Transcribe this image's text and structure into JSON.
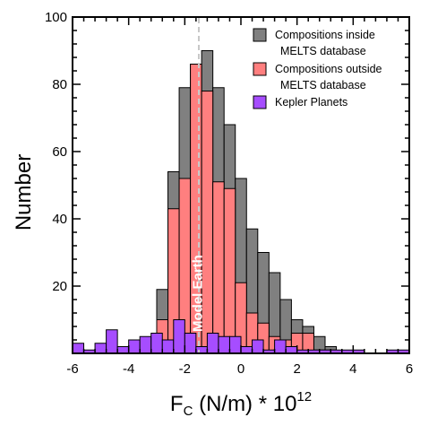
{
  "chart_data": {
    "type": "bar",
    "ylabel": "Number",
    "xlabel": {
      "base": "F",
      "sub": "C",
      "rest": " (N/m) * 10",
      "sup": "12"
    },
    "xlim": [
      -6,
      6
    ],
    "ylim": [
      0,
      100
    ],
    "xticks": [
      "-6",
      "-4",
      "-2",
      "0",
      "2",
      "4",
      "6"
    ],
    "xtick_values": [
      -6,
      -4,
      -2,
      0,
      2,
      4,
      6
    ],
    "yticks": [
      "20",
      "40",
      "60",
      "80",
      "100"
    ],
    "ytick_values": [
      20,
      40,
      60,
      80,
      100
    ],
    "bin_width": 0.4,
    "grid": false,
    "legend_position": "top-right",
    "colors": {
      "inside": "#808080",
      "outside": "#ff7f7f",
      "kepler": "#a64dff",
      "earth_line": "#c8c8c8"
    },
    "series": [
      {
        "name": "Compositions inside",
        "name_line2": "MELTS database",
        "color": "#808080",
        "bins": [
          {
            "x0": -3.0,
            "value": 19
          },
          {
            "x0": -2.6,
            "value": 54
          },
          {
            "x0": -2.2,
            "value": 79
          },
          {
            "x0": -1.8,
            "value": 86
          },
          {
            "x0": -1.4,
            "value": 90
          },
          {
            "x0": -1.0,
            "value": 79
          },
          {
            "x0": -0.6,
            "value": 68
          },
          {
            "x0": -0.2,
            "value": 52
          },
          {
            "x0": 0.2,
            "value": 37
          },
          {
            "x0": 0.6,
            "value": 30
          },
          {
            "x0": 1.0,
            "value": 24
          },
          {
            "x0": 1.4,
            "value": 16
          },
          {
            "x0": 1.8,
            "value": 10
          },
          {
            "x0": 2.2,
            "value": 8
          },
          {
            "x0": 2.6,
            "value": 5
          },
          {
            "x0": 3.0,
            "value": 2
          }
        ]
      },
      {
        "name": "Compositions outside",
        "name_line2": "MELTS database",
        "color": "#ff7f7f",
        "bins": [
          {
            "x0": -3.0,
            "value": 10
          },
          {
            "x0": -2.6,
            "value": 43
          },
          {
            "x0": -2.2,
            "value": 52
          },
          {
            "x0": -1.8,
            "value": 86
          },
          {
            "x0": -1.4,
            "value": 78
          },
          {
            "x0": -1.0,
            "value": 51
          },
          {
            "x0": -0.6,
            "value": 49
          },
          {
            "x0": -0.2,
            "value": 21
          },
          {
            "x0": 0.2,
            "value": 12
          },
          {
            "x0": 0.6,
            "value": 9
          },
          {
            "x0": 1.0,
            "value": 5
          },
          {
            "x0": 1.4,
            "value": 4
          },
          {
            "x0": 1.8,
            "value": 6
          },
          {
            "x0": 2.2,
            "value": 6
          },
          {
            "x0": 2.6,
            "value": 1
          },
          {
            "x0": 3.0,
            "value": 1
          }
        ]
      },
      {
        "name": "Kepler Planets",
        "color": "#a64dff",
        "bins": [
          {
            "x0": -6.0,
            "value": 3
          },
          {
            "x0": -5.6,
            "value": 1
          },
          {
            "x0": -5.2,
            "value": 3
          },
          {
            "x0": -4.8,
            "value": 7
          },
          {
            "x0": -4.4,
            "value": 2
          },
          {
            "x0": -4.0,
            "value": 4
          },
          {
            "x0": -3.6,
            "value": 5
          },
          {
            "x0": -3.2,
            "value": 6
          },
          {
            "x0": -2.8,
            "value": 4
          },
          {
            "x0": -2.4,
            "value": 10
          },
          {
            "x0": -2.0,
            "value": 6
          },
          {
            "x0": -1.6,
            "value": 2
          },
          {
            "x0": -1.2,
            "value": 6
          },
          {
            "x0": -0.8,
            "value": 5
          },
          {
            "x0": -0.4,
            "value": 5
          },
          {
            "x0": 0.0,
            "value": 2
          },
          {
            "x0": 0.4,
            "value": 4
          },
          {
            "x0": 0.8,
            "value": 1
          },
          {
            "x0": 1.2,
            "value": 4
          },
          {
            "x0": 1.6,
            "value": 2
          },
          {
            "x0": 2.0,
            "value": 1
          },
          {
            "x0": 2.4,
            "value": 1
          },
          {
            "x0": 2.8,
            "value": 1
          },
          {
            "x0": 3.2,
            "value": 1
          },
          {
            "x0": 3.6,
            "value": 1
          },
          {
            "x0": 4.0,
            "value": 1
          },
          {
            "x0": 4.4,
            "value": 0
          },
          {
            "x0": 4.8,
            "value": 0
          },
          {
            "x0": 5.2,
            "value": 1
          },
          {
            "x0": 5.6,
            "value": 1
          }
        ]
      }
    ],
    "annotations": [
      {
        "text": "Model Earth",
        "x": -1.5
      }
    ]
  }
}
